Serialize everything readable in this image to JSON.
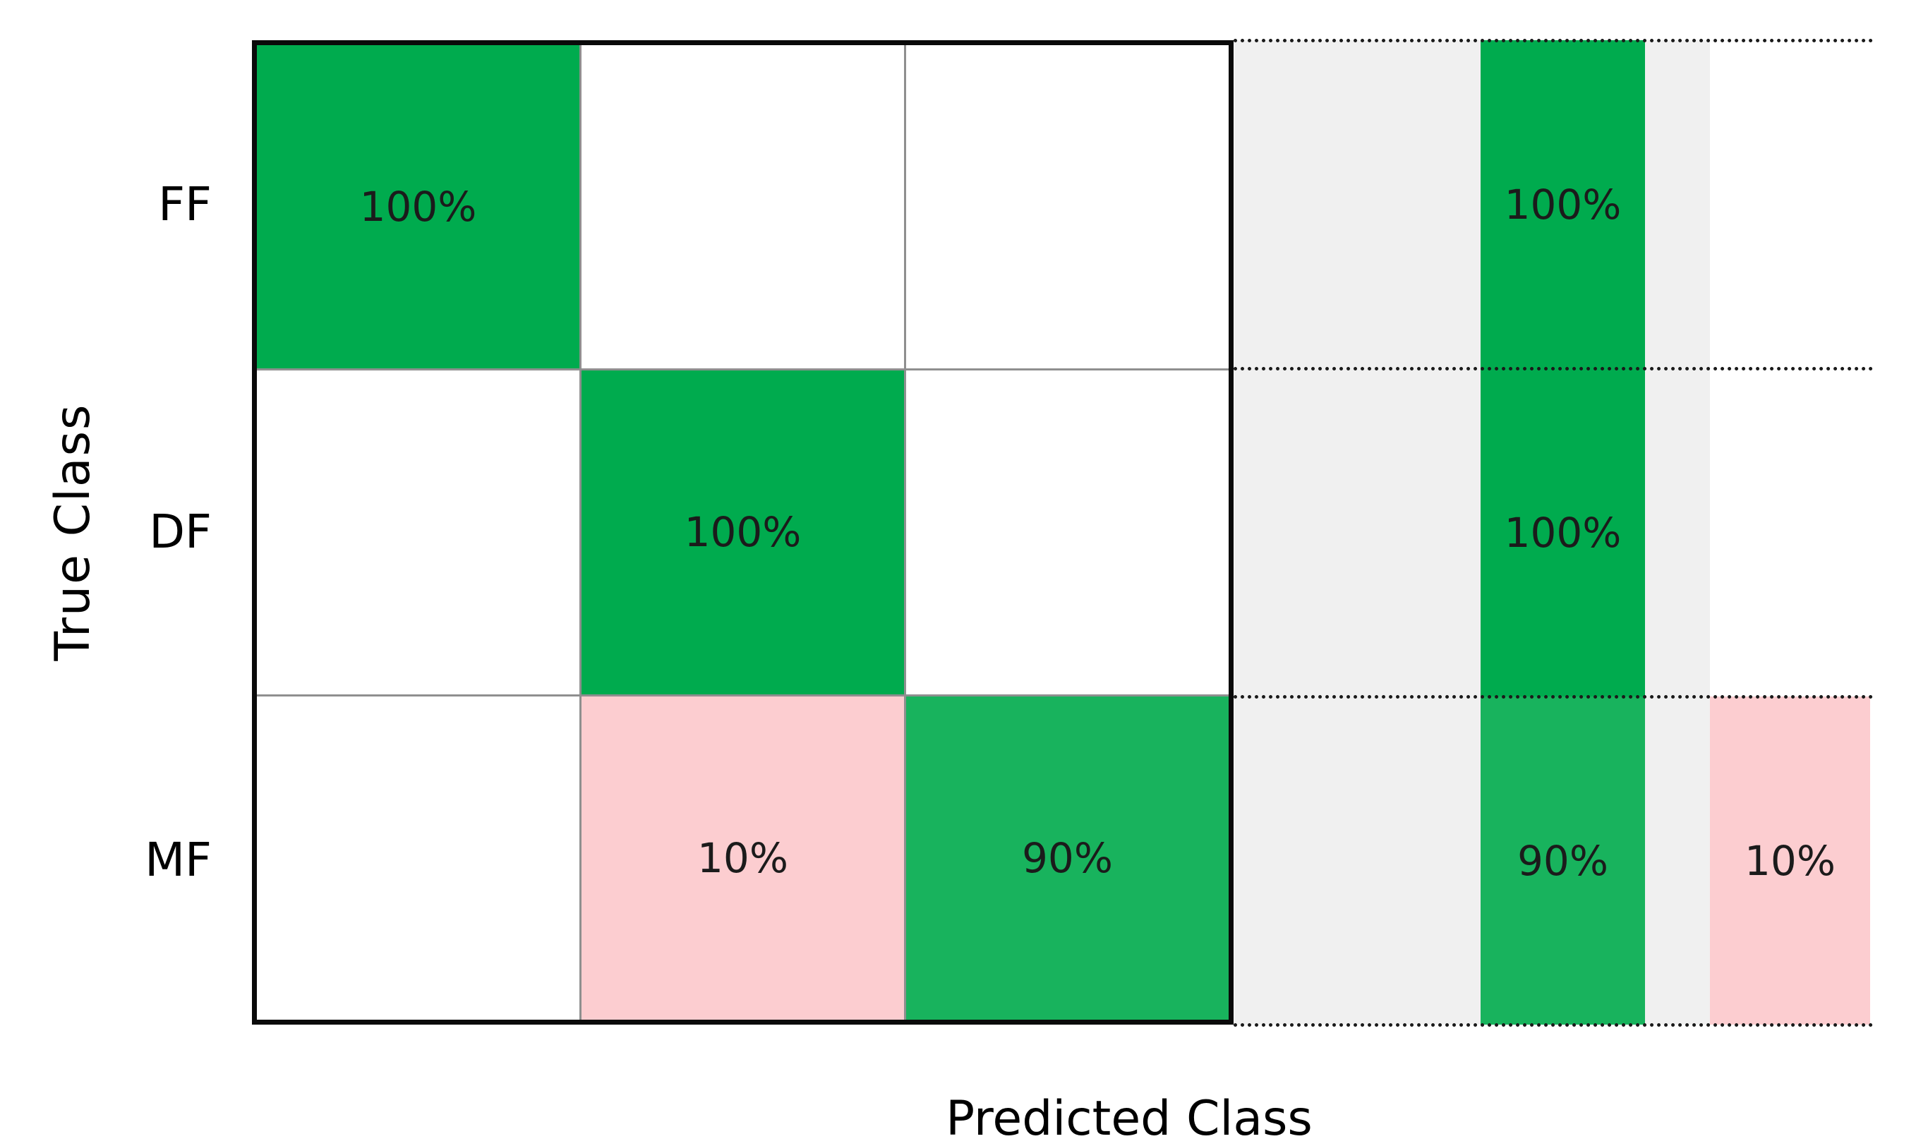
{
  "chart_data": {
    "type": "heatmap",
    "subtype": "confusion-matrix-with-row-summary",
    "title": "",
    "xlabel": "Predicted Class",
    "ylabel": "True Class",
    "classes": [
      "FF",
      "DF",
      "MF"
    ],
    "matrix_percent": [
      [
        100,
        0,
        0
      ],
      [
        0,
        100,
        0
      ],
      [
        0,
        10,
        90
      ]
    ],
    "cell_labels": [
      [
        "100%",
        "",
        ""
      ],
      [
        "",
        "100%",
        ""
      ],
      [
        "",
        "10%",
        "90%"
      ]
    ],
    "row_summary": {
      "correct_labels": [
        "100%",
        "100%",
        "90%"
      ],
      "incorrect_labels": [
        "",
        "",
        "10%"
      ]
    },
    "colors": {
      "correct_green": "#00ab4e",
      "correct_green_light": "#18b35d",
      "incorrect_pink": "#fccdd0",
      "summary_background": "#f0f0f0",
      "empty_cell": "#ffffff",
      "grid_line": "#8f8f8f",
      "border": "#0a0a0a"
    },
    "legend": "none",
    "grid": "thin gray lines between cells; black dotted horizontal separators across summary panel"
  }
}
